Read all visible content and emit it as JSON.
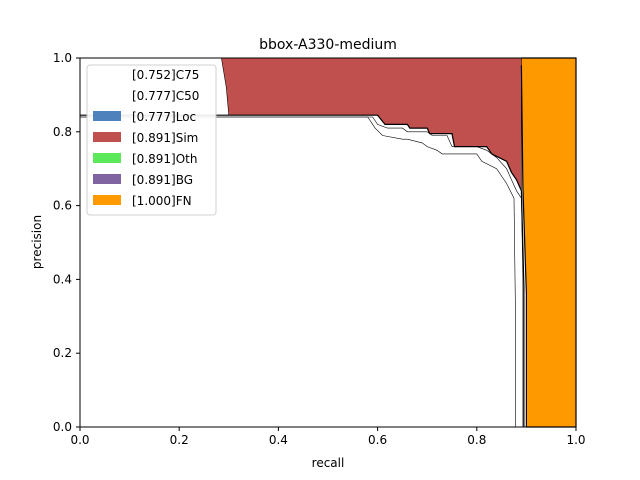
{
  "chart_data": {
    "type": "area",
    "title": "bbox-A330-medium",
    "xlabel": "recall",
    "ylabel": "precision",
    "xlim": [
      0,
      1
    ],
    "ylim": [
      0,
      1
    ],
    "x_ticks": [
      "0.0",
      "0.2",
      "0.4",
      "0.6",
      "0.8",
      "1.0"
    ],
    "y_ticks": [
      "0.0",
      "0.2",
      "0.4",
      "0.6",
      "0.8",
      "1.0"
    ],
    "grid": false,
    "legend_position": "upper-left",
    "legend": [
      {
        "label": "[0.752]C75",
        "color": "#ffffff"
      },
      {
        "label": "[0.777]C50",
        "color": "#ffffff"
      },
      {
        "label": "[0.777]Loc",
        "color": "#4f81bd"
      },
      {
        "label": "[0.891]Sim",
        "color": "#c0504d"
      },
      {
        "label": "[0.891]Oth",
        "color": "#5be85b"
      },
      {
        "label": "[0.891]BG",
        "color": "#8064a2"
      },
      {
        "label": "[1.000]FN",
        "color": "#ff9900"
      }
    ],
    "series": [
      {
        "name": "[0.752]C75",
        "x": [
          0,
          0.58,
          0.595,
          0.61,
          0.65,
          0.66,
          0.69,
          0.7,
          0.72,
          0.73,
          0.76,
          0.8,
          0.81,
          0.84,
          0.86,
          0.875,
          0.878,
          0.878
        ],
        "y": [
          0.84,
          0.84,
          0.81,
          0.79,
          0.78,
          0.78,
          0.77,
          0.76,
          0.75,
          0.74,
          0.74,
          0.74,
          0.72,
          0.7,
          0.66,
          0.62,
          0.3,
          0
        ]
      },
      {
        "name": "[0.777]C50",
        "x": [
          0,
          0.59,
          0.6,
          0.62,
          0.65,
          0.66,
          0.7,
          0.71,
          0.74,
          0.75,
          0.8,
          0.82,
          0.84,
          0.86,
          0.87,
          0.88,
          0.89,
          0.893,
          0.893
        ],
        "y": [
          0.84,
          0.84,
          0.82,
          0.81,
          0.81,
          0.8,
          0.8,
          0.79,
          0.79,
          0.76,
          0.76,
          0.75,
          0.73,
          0.7,
          0.67,
          0.64,
          0.62,
          0.4,
          0
        ]
      },
      {
        "name": "[0.777]Loc",
        "x": [
          0,
          0.6,
          0.615,
          0.66,
          0.665,
          0.7,
          0.705,
          0.75,
          0.755,
          0.82,
          0.83,
          0.86,
          0.87,
          0.88,
          0.89,
          0.895,
          0.895
        ],
        "y": [
          0.845,
          0.845,
          0.82,
          0.82,
          0.81,
          0.81,
          0.795,
          0.795,
          0.76,
          0.76,
          0.74,
          0.72,
          0.69,
          0.67,
          0.64,
          0.38,
          0
        ]
      },
      {
        "name": "[0.891]Sim",
        "x": [
          0.285,
          0.295,
          0.3,
          0.6,
          0.615,
          0.66,
          0.665,
          0.7,
          0.705,
          0.75,
          0.755,
          0.82,
          0.83,
          0.86,
          0.87,
          0.88,
          0.89,
          0.89,
          0.89
        ],
        "y": [
          1.0,
          0.92,
          0.845,
          0.845,
          0.82,
          0.82,
          0.81,
          0.81,
          0.795,
          0.795,
          0.76,
          0.76,
          0.74,
          0.72,
          0.69,
          0.67,
          0.64,
          0.98,
          1.0
        ]
      },
      {
        "name": "[1.000]FN",
        "x": [
          0.89,
          1.0,
          1.0,
          0.9,
          0.9,
          0.893,
          0.89
        ],
        "y": [
          1.0,
          1.0,
          0,
          0,
          0.36,
          0.65,
          0.98
        ]
      }
    ]
  }
}
